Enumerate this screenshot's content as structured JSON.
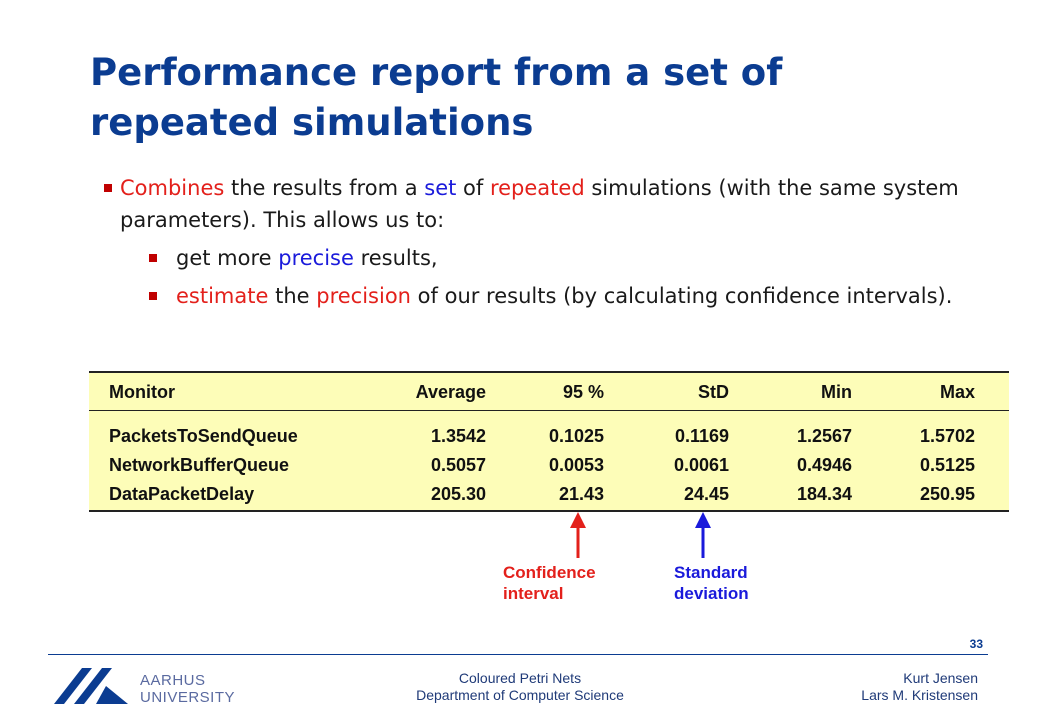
{
  "title_line1": "Performance report from a set of",
  "title_line2": "repeated simulations",
  "bullet1": {
    "seg1": "Combines",
    "seg2": " the results from a ",
    "seg3": "set",
    "seg4": " of ",
    "seg5": "repeated",
    "seg6": " simulations (with the same system parameters). This allows us to:"
  },
  "bullet2": {
    "seg1": "get more ",
    "seg2": "precise",
    "seg3": " results,"
  },
  "bullet3": {
    "seg1": "estimate",
    "seg2": " the ",
    "seg3": "precision",
    "seg4": " of our results (by calculating confidence intervals)."
  },
  "table": {
    "headers": [
      "Monitor",
      "Average",
      "95 %",
      "StD",
      "Min",
      "Max"
    ],
    "rows": [
      [
        "PacketsToSendQueue",
        "1.3542",
        "0.1025",
        "0.1169",
        "1.2567",
        "1.5702"
      ],
      [
        "NetworkBufferQueue",
        "0.5057",
        "0.0053",
        "0.0061",
        "0.4946",
        "0.5125"
      ],
      [
        "DataPacketDelay",
        "205.30",
        "21.43",
        "24.45",
        "184.34",
        "250.95"
      ]
    ]
  },
  "annotations": {
    "ci_line1": "Confidence",
    "ci_line2": "interval",
    "sd_line1": "Standard",
    "sd_line2": "deviation"
  },
  "colors": {
    "title": "#0b3c91",
    "highlight_red": "#e3201b",
    "highlight_blue": "#1a1adb",
    "table_bg": "#fdfdb8"
  },
  "footer": {
    "page_number": "33",
    "university_line1": "AARHUS",
    "university_line2": "UNIVERSITY",
    "course": "Coloured Petri Nets",
    "department": "Department of Computer Science",
    "author1": "Kurt Jensen",
    "author2": "Lars M. Kristensen"
  }
}
